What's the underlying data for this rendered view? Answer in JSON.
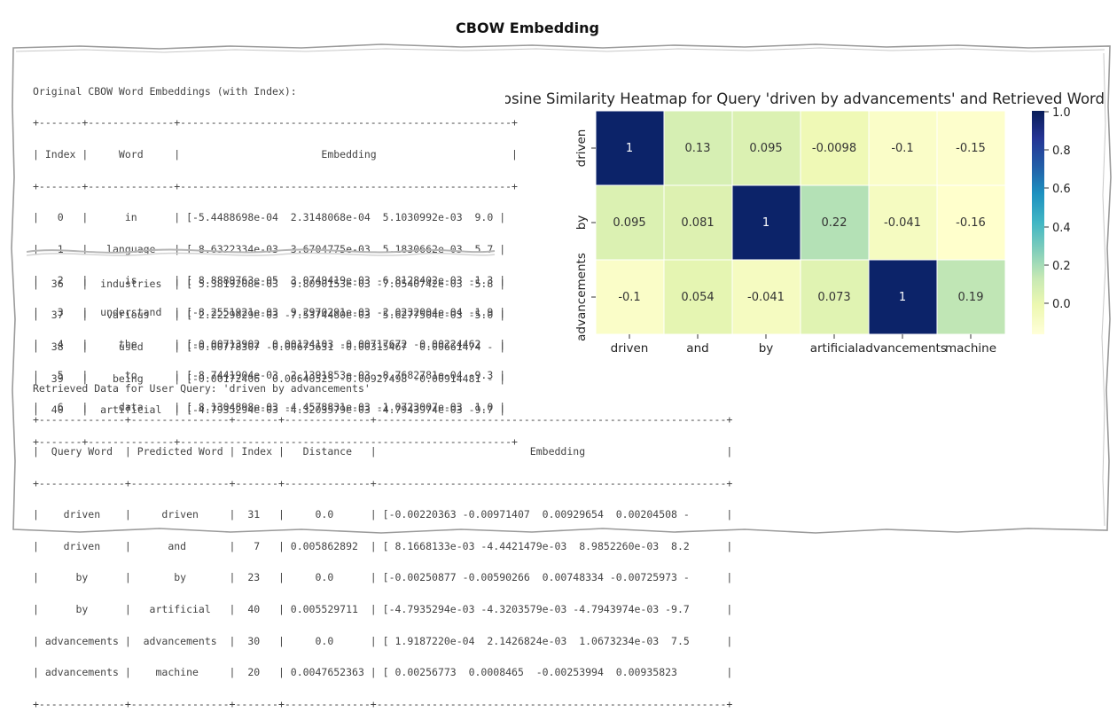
{
  "page_title": "CBOW Embedding",
  "original": {
    "heading": "Original CBOW Word Embeddings (with Index):",
    "border": "+-------+--------------+------------------------------------------------------+",
    "header_line": "| Index |     Word     |                       Embedding                      |",
    "rows_top": [
      "|   0   |      in      | [-5.4488698e-04  2.3148068e-04  5.1030992e-03  9.0 |",
      "|   1   |   language   | [-8.6322334e-03  3.6704775e-03  5.1830662e-03  5.7 |",
      "|   2   |      is      | [ 8.8889763e-05  3.0749419e-03 -6.8128402e-03 -1.3 |",
      "|   3   |  understand  | [-8.2551921e-03  9.2970291e-03 -2.0232004e-04 -1.9 |",
      "|   4   |     the      | [-0.00713902  0.00124103 -0.00717672 -0.00224462   |",
      "|   5   |      to      | [-8.7441904e-03  2.1391853e-03 -8.7682781e-04 -9.3 |",
      "|   6   |     data     | [ 8.1304898e-03 -4.4578831e-03 -1.0723007e-03  1.0 |"
    ],
    "rows_bottom": [
      "|  36   |  industries  | [ 5.3819208e-03  9.8090153e-03 -7.0540742e-03 -5.8 |",
      "|  37   |   various    | [ 2.2229629e-03 -7.5374460e-03  5.6277504e-03 -5.0 |",
      "|  38   |     used     | [-0.00778307 -0.00675631 -0.00315467  0.00661474 - |",
      "|  39   |    being     | [-0.00172406  0.00640525 -0.00927498 -0.00914481 - |",
      "|  40   |  artificial  | [-4.7935294e-03 -4.3203579e-03 -4.7943974e-03 -9.7 |"
    ]
  },
  "retrieved": {
    "heading": "Retrieved Data for User Query: 'driven by advancements'",
    "border": "+--------------+----------------+-------+--------------+---------------------------------------------------------+",
    "header_line": "|  Query Word  | Predicted Word | Index |   Distance   |                         Embedding                       |",
    "rows": [
      "|    driven    |     driven     |  31   |     0.0      | [-0.00220363 -0.00971407  0.00929654  0.00204508 -      |",
      "|    driven    |      and       |   7   | 0.005862892  | [ 8.1668133e-03 -4.4421479e-03  8.9852260e-03  8.2      |",
      "|      by      |       by       |  23   |     0.0      | [-0.00250877 -0.00590266  0.00748334 -0.00725973 -      |",
      "|      by      |   artificial   |  40   | 0.005529711  | [-4.7935294e-03 -4.3203579e-03 -4.7943974e-03 -9.7      |",
      "| advancements |  advancements  |  30   |     0.0      | [ 1.9187220e-04  2.1426824e-03  1.0673234e-03  7.5      |",
      "| advancements |    machine     |  20   | 0.0047652363 | [ 0.00256773  0.0008465  -0.00253994  0.00935823        |"
    ]
  },
  "heatmap": {
    "title": "Cosine Similarity Heatmap for Query 'driven by advancements' and Retrieved Words",
    "rows": [
      "driven",
      "by",
      "advancements"
    ],
    "cols": [
      "driven",
      "and",
      "by",
      "artificial",
      "advancements",
      "machine"
    ],
    "cell_labels": [
      [
        "1",
        "0.13",
        "0.095",
        "-0.0098",
        "-0.1",
        "-0.15"
      ],
      [
        "0.095",
        "0.081",
        "1",
        "0.22",
        "-0.041",
        "-0.16"
      ],
      [
        "-0.1",
        "0.054",
        "-0.041",
        "0.073",
        "1",
        "0.19"
      ]
    ],
    "colorbar_ticks": [
      "1.0",
      "0.8",
      "0.6",
      "0.4",
      "0.2",
      "0.0"
    ],
    "colors": {
      "c1": "#0c2369",
      "c022": "#b4e1b6",
      "c019": "#c0e6b5",
      "c013": "#d6efb3",
      "c0095": "#dbf1b2",
      "c0081": "#ddf1b1",
      "c0073": "#e0f3b2",
      "c0054": "#e5f5b2",
      "c00098": "#eff9b6",
      "cneg0041": "#f5fbc1",
      "cneg01": "#fafdc8",
      "cneg015": "#fdfecc",
      "cneg016": "#ffffcc"
    }
  }
}
